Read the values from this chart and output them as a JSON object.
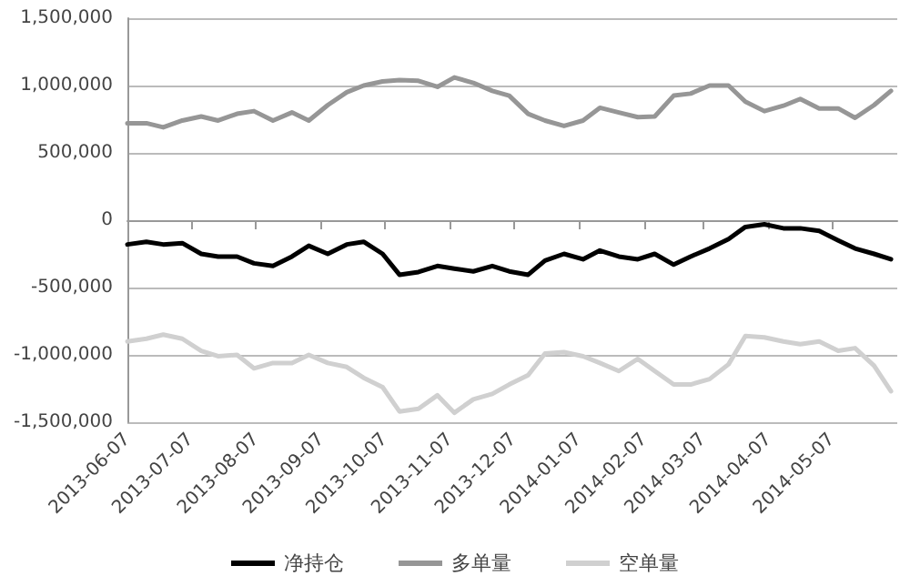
{
  "chart_data": {
    "type": "line",
    "x": [
      "2013-06-07",
      "2013-06-16",
      "2013-06-24",
      "2013-07-03",
      "2013-07-12",
      "2013-07-20",
      "2013-07-29",
      "2013-08-06",
      "2013-08-15",
      "2013-08-24",
      "2013-09-01",
      "2013-09-10",
      "2013-09-19",
      "2013-09-27",
      "2013-10-06",
      "2013-10-14",
      "2013-10-23",
      "2013-11-01",
      "2013-11-09",
      "2013-11-18",
      "2013-11-27",
      "2013-12-05",
      "2013-12-14",
      "2013-12-22",
      "2013-12-31",
      "2014-01-09",
      "2014-01-17",
      "2014-01-26",
      "2014-02-04",
      "2014-02-12",
      "2014-02-21",
      "2014-03-01",
      "2014-03-10",
      "2014-03-19",
      "2014-03-27",
      "2014-04-05",
      "2014-04-14",
      "2014-04-22",
      "2014-05-01",
      "2014-05-10",
      "2014-05-18",
      "2014-05-27",
      "2014-06-04"
    ],
    "series": [
      {
        "name": "净持仓",
        "color": "#000000",
        "values": [
          -180000,
          -160000,
          -180000,
          -170000,
          -250000,
          -270000,
          -270000,
          -320000,
          -340000,
          -270000,
          -190000,
          -250000,
          -180000,
          -160000,
          -250000,
          -405000,
          -385000,
          -340000,
          -360000,
          -380000,
          -340000,
          -380000,
          -405000,
          -300000,
          -250000,
          -290000,
          -225000,
          -270000,
          -290000,
          -250000,
          -330000,
          -270000,
          -210000,
          -140000,
          -50000,
          -30000,
          -60000,
          -60000,
          -80000,
          -150000,
          -210000,
          -250000,
          -290000
        ]
      },
      {
        "name": "多单量",
        "color": "#969696",
        "values": [
          720000,
          720000,
          690000,
          740000,
          770000,
          740000,
          790000,
          810000,
          740000,
          800000,
          740000,
          855000,
          950000,
          1000000,
          1030000,
          1040000,
          1035000,
          990000,
          1060000,
          1020000,
          960000,
          925000,
          790000,
          740000,
          700000,
          740000,
          835000,
          800000,
          765000,
          770000,
          925000,
          940000,
          1000000,
          1000000,
          880000,
          810000,
          850000,
          900000,
          830000,
          830000,
          760000,
          855000,
          960000
        ]
      },
      {
        "name": "空单量",
        "color": "#d0d0d0",
        "values": [
          -900000,
          -880000,
          -850000,
          -880000,
          -970000,
          -1010000,
          -1000000,
          -1100000,
          -1060000,
          -1060000,
          -1000000,
          -1060000,
          -1090000,
          -1170000,
          -1240000,
          -1420000,
          -1400000,
          -1300000,
          -1430000,
          -1330000,
          -1290000,
          -1220000,
          -1150000,
          -990000,
          -980000,
          -1010000,
          -1060000,
          -1120000,
          -1030000,
          -1120000,
          -1220000,
          -1220000,
          -1180000,
          -1070000,
          -860000,
          -870000,
          -900000,
          -920000,
          -900000,
          -970000,
          -950000,
          -1080000,
          -1270000
        ]
      }
    ],
    "xlim": [
      "2013-06-07",
      "2014-06-07"
    ],
    "xticks": [
      "2013-06-07",
      "2013-07-07",
      "2013-08-07",
      "2013-09-07",
      "2013-10-07",
      "2013-11-07",
      "2013-12-07",
      "2014-01-07",
      "2014-02-07",
      "2014-03-07",
      "2014-04-07",
      "2014-05-07"
    ],
    "ylim": [
      -1500000,
      1500000
    ],
    "yticks": [
      {
        "value": -1500000,
        "label": "-1,500,000"
      },
      {
        "value": -1000000,
        "label": "-1,000,000"
      },
      {
        "value": -500000,
        "label": "-500,000"
      },
      {
        "value": 0,
        "label": "0"
      },
      {
        "value": 500000,
        "label": "500,000"
      },
      {
        "value": 1000000,
        "label": "1,000,000"
      },
      {
        "value": 1500000,
        "label": "1,500,000"
      }
    ],
    "grid": "y",
    "legend": "bottom",
    "marker": "none",
    "line_style": "solid"
  }
}
